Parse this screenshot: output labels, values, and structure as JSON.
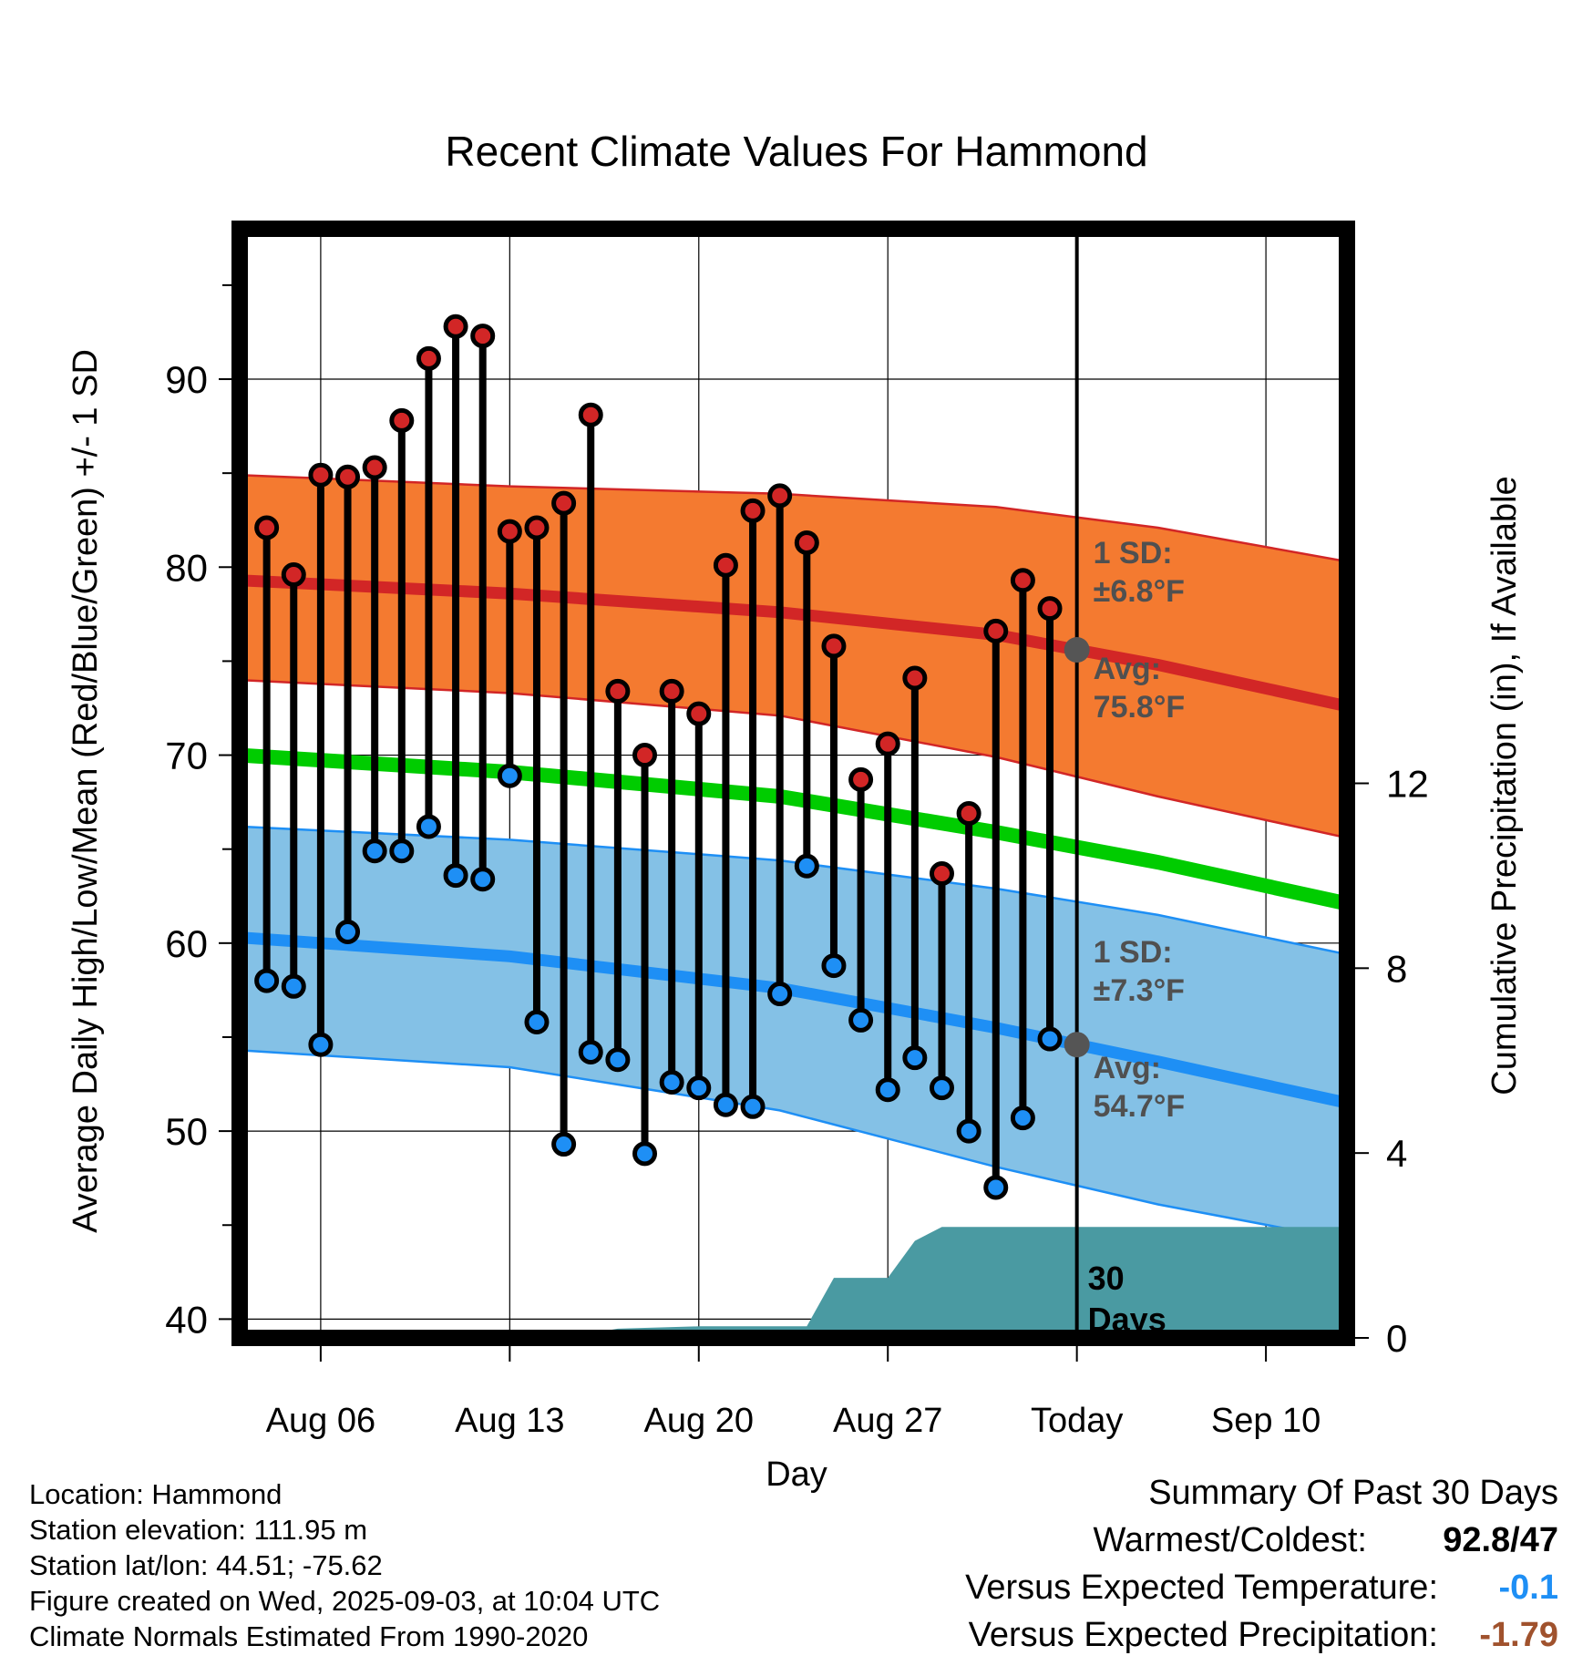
{
  "chart_data": {
    "type": "line",
    "title": "Recent Climate Values For Hammond",
    "xlabel": "Day",
    "ylabel": "Average Daily High/Low/Mean (Red/Blue/Green) +/- 1 SD",
    "y2label": "Cumulative Precipitation (in), If Available",
    "x_tick_labels": [
      "Aug 06",
      "Aug 13",
      "Aug 20",
      "Aug 27",
      "Today",
      "Sep 10"
    ],
    "x_tick_days": [
      3,
      10,
      17,
      24,
      31,
      38
    ],
    "xlim": [
      0,
      41
    ],
    "ylim": [
      39,
      98
    ],
    "y_ticks": [
      40,
      50,
      60,
      70,
      80,
      90
    ],
    "y2lim": [
      0,
      24
    ],
    "y2_ticks": [
      0,
      4,
      8,
      12
    ],
    "today_day": 31,
    "series": [
      {
        "name": "High",
        "days": [
          1,
          2,
          3,
          4,
          5,
          6,
          7,
          8,
          9,
          10,
          11,
          12,
          13,
          14,
          15,
          16,
          17,
          18,
          19,
          20,
          21,
          22,
          23,
          24,
          25,
          26,
          27,
          28,
          29,
          30
        ],
        "values": [
          82.1,
          79.6,
          84.9,
          84.8,
          85.3,
          87.8,
          91.1,
          92.8,
          92.3,
          81.9,
          82.1,
          83.4,
          88.1,
          73.4,
          70.0,
          73.4,
          72.2,
          80.1,
          83.0,
          83.8,
          81.3,
          75.8,
          68.7,
          70.6,
          74.1,
          63.7,
          66.9,
          76.6,
          79.3,
          77.8
        ]
      },
      {
        "name": "Low",
        "days": [
          1,
          2,
          3,
          4,
          5,
          6,
          7,
          8,
          9,
          10,
          11,
          12,
          13,
          14,
          15,
          16,
          17,
          18,
          19,
          20,
          21,
          22,
          23,
          24,
          25,
          26,
          27,
          28,
          29,
          30
        ],
        "values": [
          58.0,
          57.7,
          54.6,
          60.6,
          64.9,
          64.9,
          66.2,
          63.6,
          63.4,
          68.9,
          55.8,
          49.3,
          54.2,
          53.8,
          48.8,
          52.6,
          52.3,
          51.4,
          51.3,
          57.3,
          64.1,
          58.8,
          55.9,
          52.2,
          53.9,
          52.3,
          50.0,
          47.0,
          50.7,
          54.9
        ]
      },
      {
        "name": "Normal High",
        "days": [
          0,
          10,
          20,
          28,
          34,
          41
        ],
        "values": [
          79.3,
          78.6,
          77.6,
          76.4,
          74.8,
          72.6
        ]
      },
      {
        "name": "Normal High Upper",
        "days": [
          0,
          10,
          20,
          28,
          34,
          41
        ],
        "values": [
          84.9,
          84.3,
          83.9,
          83.2,
          82.1,
          80.3
        ]
      },
      {
        "name": "Normal High Lower",
        "days": [
          0,
          10,
          20,
          28,
          34,
          41
        ],
        "values": [
          74.0,
          73.3,
          72.1,
          69.9,
          67.8,
          65.6
        ]
      },
      {
        "name": "Normal Mean",
        "days": [
          0,
          10,
          20,
          28,
          34,
          41
        ],
        "values": [
          70.0,
          69.1,
          67.8,
          65.9,
          64.3,
          62.1
        ]
      },
      {
        "name": "Normal Low",
        "days": [
          0,
          10,
          20,
          28,
          34,
          41
        ],
        "values": [
          60.3,
          59.3,
          57.6,
          55.5,
          53.7,
          51.5
        ]
      },
      {
        "name": "Normal Low Upper",
        "days": [
          0,
          10,
          20,
          28,
          34,
          41
        ],
        "values": [
          66.2,
          65.5,
          64.4,
          62.9,
          61.5,
          59.4
        ]
      },
      {
        "name": "Normal Low Lower",
        "days": [
          0,
          10,
          20,
          28,
          34,
          41
        ],
        "values": [
          54.3,
          53.4,
          51.1,
          48.1,
          46.1,
          44.2
        ]
      },
      {
        "name": "Cumulative Precipitation",
        "days": [
          0,
          9,
          10,
          13,
          14,
          17,
          21,
          22,
          24,
          25,
          26,
          41
        ],
        "values": [
          0,
          0,
          0.1,
          0.1,
          0.2,
          0.25,
          0.25,
          1.3,
          1.3,
          2.1,
          2.4,
          2.4
        ]
      }
    ],
    "annotations": {
      "high_sd_label": "1 SD:",
      "high_sd_value": "±6.8°F",
      "high_avg_label": "Avg:",
      "high_avg_value": "75.8°F",
      "low_sd_label": "1 SD:",
      "low_sd_value": "±7.3°F",
      "low_avg_label": "Avg:",
      "low_avg_value": "54.7°F",
      "window_number": "30",
      "window_unit": "Days"
    },
    "grid": true,
    "legend": "none"
  },
  "info": {
    "location": "Location: Hammond",
    "elevation": "Station elevation: 111.95 m",
    "latlon": "Station lat/lon: 44.51; -75.62",
    "created": "Figure created on Wed, 2025-09-03, at 10:04 UTC",
    "normals": "Climate Normals Estimated From 1990-2020"
  },
  "summary": {
    "heading": "Summary Of Past 30 Days",
    "warm_cold_label": "Warmest/Coldest:",
    "warmest": "92.8",
    "separator": "/",
    "coldest": "47",
    "temp_label": "Versus Expected Temperature:",
    "temp_value": "-0.1",
    "precip_label": "Versus Expected Precipitation:",
    "precip_value": "-1.79"
  },
  "colors": {
    "high_band": "#f47a30",
    "high_line": "#d22626",
    "low_band": "#84c1e6",
    "low_line": "#1e8ff5",
    "mean_line": "#00cc00",
    "precip_fill": "#4a9aa2",
    "high_marker": "#d22626",
    "low_marker": "#1e8ff5",
    "annotation_text": "#505050",
    "temp_value": "#1e8ff5",
    "precip_value": "#a0522d"
  }
}
